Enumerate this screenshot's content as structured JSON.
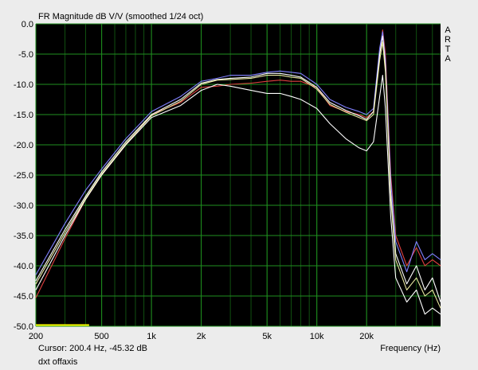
{
  "chart_data": {
    "type": "line",
    "title": "FR Magnitude dB V/V (smoothed 1/24 oct)",
    "xlabel": "Frequency (Hz)",
    "xscale": "log",
    "xlim": [
      200,
      56000
    ],
    "ylim": [
      -50,
      0
    ],
    "grid": true,
    "background": "#000000",
    "grid_color": "#1f8f1f",
    "x_ticks": [
      {
        "value": 200,
        "label": "200"
      },
      {
        "value": 500,
        "label": "500"
      },
      {
        "value": 1000,
        "label": "1k"
      },
      {
        "value": 2000,
        "label": "2k"
      },
      {
        "value": 5000,
        "label": "5k"
      },
      {
        "value": 10000,
        "label": "10k"
      },
      {
        "value": 20000,
        "label": "20k"
      }
    ],
    "y_ticks": [
      {
        "value": 0,
        "label": "0.0"
      },
      {
        "value": -5,
        "label": "-5.0"
      },
      {
        "value": -10,
        "label": "-10.0"
      },
      {
        "value": -15,
        "label": "-15.0"
      },
      {
        "value": -20,
        "label": "-20.0"
      },
      {
        "value": -25,
        "label": "-25.0"
      },
      {
        "value": -30,
        "label": "-30.0"
      },
      {
        "value": -35,
        "label": "-35.0"
      },
      {
        "value": -40,
        "label": "-40.0"
      },
      {
        "value": -45,
        "label": "-45.0"
      },
      {
        "value": -50,
        "label": "-50.0"
      }
    ],
    "series": [
      {
        "color": "#e04040",
        "x": [
          200,
          300,
          400,
          500,
          700,
          1000,
          1500,
          2000,
          2500,
          3000,
          4000,
          5000,
          6000,
          7000,
          8000,
          10000,
          12000,
          15000,
          18000,
          20000,
          22000,
          24000,
          25000,
          26000,
          28000,
          30000,
          35000,
          40000,
          45000,
          50000,
          56000
        ],
        "y": [
          -45.3,
          -35.5,
          -29,
          -25,
          -20,
          -15,
          -13,
          -10.5,
          -10.3,
          -10,
          -9.8,
          -9.5,
          -9.3,
          -9.5,
          -9.5,
          -10.5,
          -13.5,
          -14.5,
          -15,
          -15.5,
          -14.5,
          -5,
          -1,
          -5,
          -25,
          -35,
          -40,
          -37,
          -40,
          -39,
          -40
        ]
      },
      {
        "color": "#8080ff",
        "x": [
          200,
          300,
          400,
          500,
          700,
          1000,
          1500,
          2000,
          2500,
          3000,
          4000,
          5000,
          6000,
          7000,
          8000,
          10000,
          12000,
          15000,
          18000,
          20000,
          22000,
          24000,
          25000,
          26000,
          28000,
          30000,
          35000,
          40000,
          45000,
          50000,
          56000
        ],
        "y": [
          -41.5,
          -33,
          -27.5,
          -24,
          -19,
          -14.5,
          -12,
          -9.5,
          -9,
          -8.5,
          -8.5,
          -8,
          -7.8,
          -8,
          -8.2,
          -10,
          -12.5,
          -13.8,
          -14.5,
          -15,
          -14,
          -4,
          -1.3,
          -6,
          -26,
          -36,
          -41,
          -36,
          -39,
          -38,
          -39
        ]
      },
      {
        "color": "#ffffff",
        "x": [
          200,
          300,
          400,
          500,
          700,
          1000,
          1500,
          2000,
          2500,
          3000,
          4000,
          5000,
          6000,
          7000,
          8000,
          10000,
          12000,
          15000,
          18000,
          20000,
          22000,
          24000,
          25000,
          26000,
          28000,
          30000,
          35000,
          40000,
          45000,
          50000,
          56000
        ],
        "y": [
          -42.5,
          -34,
          -28.5,
          -24.5,
          -19.5,
          -15,
          -12.5,
          -9.8,
          -9.2,
          -9,
          -8.8,
          -8.2,
          -8.2,
          -8.5,
          -8.8,
          -10.5,
          -13,
          -14.3,
          -15.2,
          -15.8,
          -14.5,
          -5,
          -2,
          -7,
          -28,
          -38,
          -43,
          -40,
          -44,
          -42,
          -46
        ]
      },
      {
        "color": "#ffffff",
        "x": [
          200,
          300,
          400,
          500,
          700,
          1000,
          1500,
          2000,
          2500,
          3000,
          4000,
          5000,
          6000,
          7000,
          8000,
          10000,
          12000,
          15000,
          18000,
          20000,
          22000,
          24000,
          25000,
          26000,
          28000,
          30000,
          35000,
          40000,
          45000,
          50000,
          56000
        ],
        "y": [
          -44,
          -35,
          -29,
          -25,
          -20,
          -15.5,
          -13.5,
          -11,
          -10,
          -10.3,
          -11,
          -11.5,
          -11.5,
          -12,
          -12.5,
          -14,
          -16.5,
          -19,
          -20.5,
          -21,
          -19.5,
          -12,
          -8.5,
          -14,
          -32,
          -42,
          -46,
          -44,
          -48,
          -47,
          -48
        ]
      },
      {
        "color": "#e8e8a0",
        "x": [
          200,
          300,
          400,
          500,
          700,
          1000,
          1500,
          2000,
          2500,
          3000,
          4000,
          5000,
          6000,
          7000,
          8000,
          10000,
          12000,
          15000,
          18000,
          20000,
          22000,
          24000,
          25000,
          26000,
          28000,
          30000,
          35000,
          40000,
          45000,
          50000,
          56000
        ],
        "y": [
          -43,
          -34.5,
          -28.8,
          -24.8,
          -19.8,
          -15.2,
          -12.8,
          -10,
          -9.3,
          -9.2,
          -9,
          -8.5,
          -8.5,
          -8.8,
          -9,
          -10.8,
          -13.3,
          -14.6,
          -15.5,
          -16,
          -15,
          -6,
          -3,
          -8,
          -29,
          -39,
          -44,
          -42,
          -45,
          -44,
          -47
        ]
      }
    ],
    "cursor_marker": {
      "color": "#ffff00",
      "y": -50,
      "x_from": 200,
      "x_to": 420
    },
    "side_label": [
      "A",
      "R",
      "T",
      "A"
    ],
    "cursor_readout": "Cursor: 200.4 Hz, -45.32 dB",
    "curve_name": "dxt offaxis"
  }
}
